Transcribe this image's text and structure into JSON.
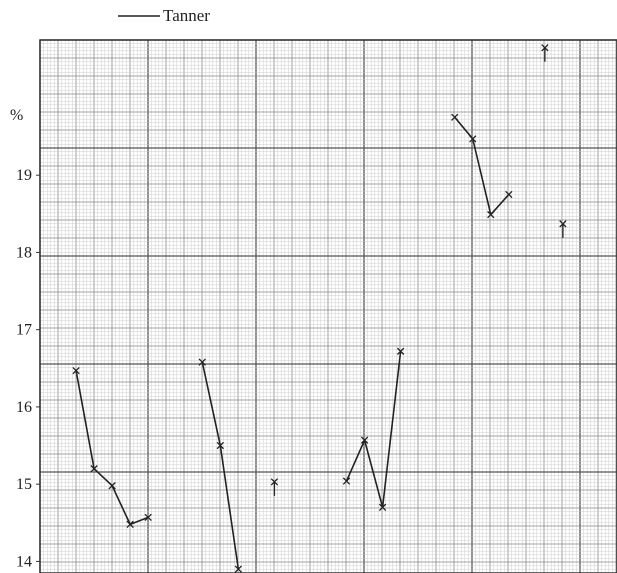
{
  "chart_data": {
    "type": "line",
    "title": "",
    "xlabel": "",
    "ylabel": "%",
    "ylim": [
      13.85,
      20.75
    ],
    "yticks": [
      14,
      15,
      16,
      17,
      18,
      19
    ],
    "ytick_labels": [
      "14",
      "15",
      "16",
      "17",
      "18",
      "19"
    ],
    "y_unit_label": "%",
    "grid": true,
    "legend": {
      "placement": "top-left",
      "label": "Tanner"
    },
    "x_domain": [
      0,
      32
    ],
    "series": [
      {
        "name": "Tanner",
        "x": [
          2,
          3,
          4,
          5,
          6
        ],
        "values": [
          16.47,
          15.2,
          14.98,
          14.48,
          14.57
        ]
      },
      {
        "name": "Tanner",
        "x": [
          9,
          10,
          11
        ],
        "values": [
          16.58,
          15.5,
          13.9
        ]
      },
      {
        "name": "Tanner",
        "x": [
          13
        ],
        "values": [
          15.03
        ]
      },
      {
        "name": "Tanner",
        "x": [
          17,
          18,
          19,
          20
        ],
        "values": [
          15.04,
          15.57,
          14.7,
          16.72
        ]
      },
      {
        "name": "Tanner",
        "x": [
          23,
          24,
          25,
          26
        ],
        "values": [
          19.75,
          19.47,
          18.49,
          18.75
        ]
      },
      {
        "name": "Tanner",
        "x": [
          28
        ],
        "values": [
          20.65
        ]
      },
      {
        "name": "Tanner",
        "x": [
          29
        ],
        "values": [
          18.37
        ]
      }
    ]
  }
}
